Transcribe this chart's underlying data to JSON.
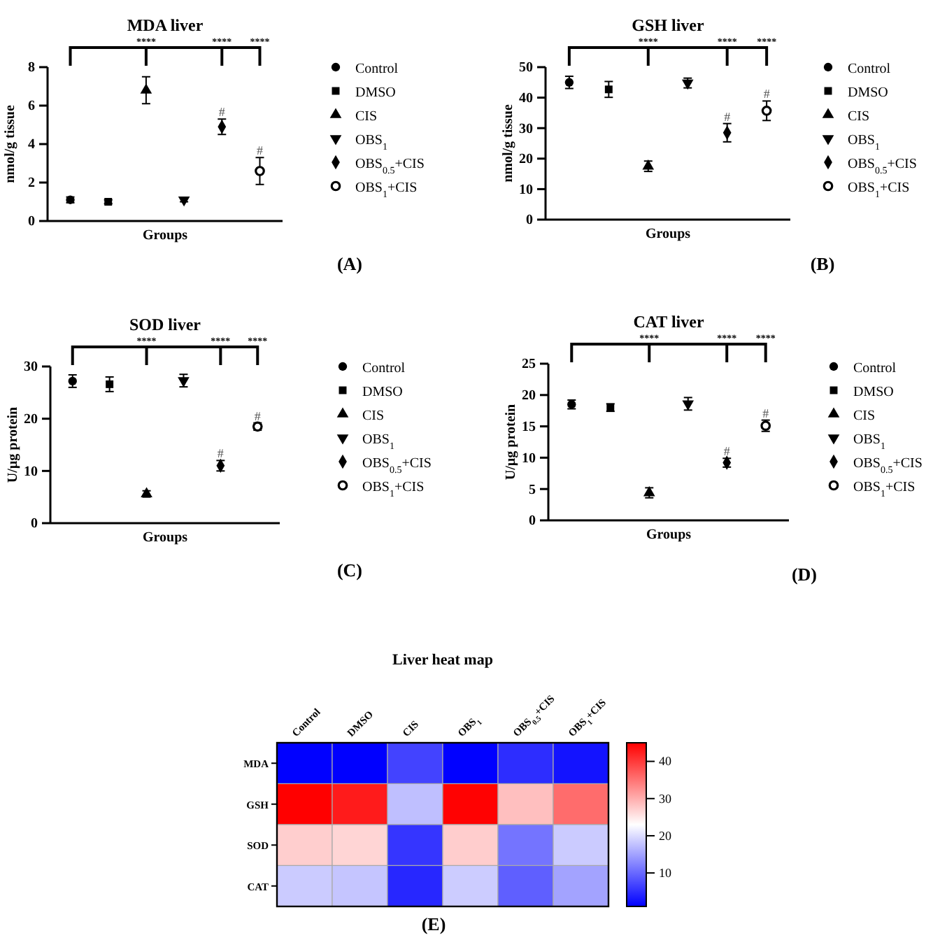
{
  "chart_data": [
    {
      "type": "scatter",
      "title": "MDA liver",
      "xlabel": "Groups",
      "ylabel": "nmol/g tissue",
      "categories": [
        null,
        null,
        null,
        null,
        null,
        null
      ],
      "ylim": [
        0,
        8
      ],
      "yticks": [
        0,
        2,
        4,
        6,
        8
      ],
      "legend": "right",
      "annotations": [
        "****",
        "****",
        "****",
        "#",
        "#",
        "(A)"
      ],
      "series": [
        {
          "name": "Control",
          "color": "#000000",
          "marker": "circle",
          "values": [
            1.1,
            null,
            null,
            null,
            null,
            null
          ],
          "errors": [
            0.15,
            null,
            null,
            null,
            null,
            null
          ]
        },
        {
          "name": "DMSO",
          "color": "#000000",
          "marker": "square",
          "values": [
            null,
            1.0,
            null,
            null,
            null,
            null
          ],
          "errors": [
            null,
            0.1,
            null,
            null,
            null,
            null
          ]
        },
        {
          "name": "CIS",
          "color": "#000000",
          "marker": "triangle",
          "values": [
            null,
            null,
            6.8,
            null,
            null,
            null
          ],
          "errors": [
            null,
            null,
            0.7,
            null,
            null,
            null
          ]
        },
        {
          "name": "OBS$_{1}$",
          "color": "#000000",
          "marker": "triangle-down",
          "values": [
            null,
            null,
            null,
            1.1,
            null,
            null
          ],
          "errors": [
            null,
            null,
            null,
            0.1,
            null,
            null
          ]
        },
        {
          "name": "OBS$_{0.5}$+CIS",
          "color": "#000000",
          "marker": "diamond",
          "values": [
            null,
            null,
            null,
            null,
            4.9,
            null
          ],
          "errors": [
            null,
            null,
            null,
            null,
            0.4,
            null
          ]
        },
        {
          "name": "OBS$_{1}$+CIS",
          "color": "#000000",
          "marker": "circle-open",
          "values": [
            null,
            null,
            null,
            null,
            null,
            2.6
          ],
          "errors": [
            null,
            null,
            null,
            null,
            null,
            0.7
          ]
        }
      ]
    },
    {
      "type": "scatter",
      "title": "GSH liver",
      "xlabel": "Groups",
      "ylabel": "nmol/g tissue",
      "categories": [
        null,
        null,
        null,
        null,
        null,
        null
      ],
      "ylim": [
        0,
        50
      ],
      "yticks": [
        0,
        10,
        20,
        30,
        40,
        50
      ],
      "legend": "right",
      "annotations": [
        "****",
        "****",
        "****",
        "#",
        "#",
        "(B)"
      ],
      "series": [
        {
          "name": "Control",
          "color": "#000000",
          "marker": "circle",
          "values": [
            45,
            null,
            null,
            null,
            null,
            null
          ],
          "errors": [
            2,
            null,
            null,
            null,
            null,
            null
          ]
        },
        {
          "name": "DMSO",
          "color": "#000000",
          "marker": "square",
          "values": [
            null,
            42.7,
            null,
            null,
            null,
            null
          ],
          "errors": [
            null,
            2.6,
            null,
            null,
            null,
            null
          ]
        },
        {
          "name": "CIS",
          "color": "#000000",
          "marker": "triangle",
          "values": [
            null,
            null,
            17.5,
            null,
            null,
            null
          ],
          "errors": [
            null,
            null,
            1.7,
            null,
            null,
            null
          ]
        },
        {
          "name": "OBS$_{1}$",
          "color": "#000000",
          "marker": "triangle-down",
          "values": [
            null,
            null,
            null,
            44.8,
            null,
            null
          ],
          "errors": [
            null,
            null,
            null,
            1.6,
            null,
            null
          ]
        },
        {
          "name": "OBS$_{0.5}$+CIS",
          "color": "#000000",
          "marker": "diamond",
          "values": [
            null,
            null,
            null,
            null,
            28.5,
            null
          ],
          "errors": [
            null,
            null,
            null,
            null,
            3,
            null
          ]
        },
        {
          "name": "OBS$_{1}$+CIS",
          "color": "#000000",
          "marker": "circle-open",
          "values": [
            null,
            null,
            null,
            null,
            null,
            35.7
          ],
          "errors": [
            null,
            null,
            null,
            null,
            null,
            3.2
          ]
        }
      ]
    },
    {
      "type": "scatter",
      "title": "SOD liver",
      "xlabel": "Groups",
      "ylabel": "U/µg protein",
      "categories": [
        null,
        null,
        null,
        null,
        null,
        null
      ],
      "ylim": [
        0,
        30
      ],
      "yticks": [
        0,
        10,
        20,
        30
      ],
      "legend": "right",
      "annotations": [
        "****",
        "****",
        "****",
        "#",
        "#",
        "(C)"
      ],
      "series": [
        {
          "name": "Control",
          "color": "#000000",
          "marker": "circle",
          "values": [
            27.2,
            null,
            null,
            null,
            null,
            null
          ],
          "errors": [
            1.2,
            null,
            null,
            null,
            null,
            null
          ]
        },
        {
          "name": "DMSO",
          "color": "#000000",
          "marker": "square",
          "values": [
            null,
            26.6,
            null,
            null,
            null,
            null
          ],
          "errors": [
            null,
            1.4,
            null,
            null,
            null,
            null
          ]
        },
        {
          "name": "CIS",
          "color": "#000000",
          "marker": "triangle",
          "values": [
            null,
            null,
            5.6,
            null,
            null,
            null
          ],
          "errors": [
            null,
            null,
            0.6,
            null,
            null,
            null
          ]
        },
        {
          "name": "OBS$_{1}$",
          "color": "#000000",
          "marker": "triangle-down",
          "values": [
            null,
            null,
            null,
            27.3,
            null,
            null
          ],
          "errors": [
            null,
            null,
            null,
            1.2,
            null,
            null
          ]
        },
        {
          "name": "OBS$_{0.5}$+CIS",
          "color": "#000000",
          "marker": "diamond",
          "values": [
            null,
            null,
            null,
            null,
            11,
            null
          ],
          "errors": [
            null,
            null,
            null,
            null,
            1,
            null
          ]
        },
        {
          "name": "OBS$_{1}$+CIS",
          "color": "#000000",
          "marker": "circle-open",
          "values": [
            null,
            null,
            null,
            null,
            null,
            18.5
          ],
          "errors": [
            null,
            null,
            null,
            null,
            null,
            0.7
          ]
        }
      ]
    },
    {
      "type": "scatter",
      "title": "CAT liver",
      "xlabel": "Groups",
      "ylabel": "U/µg protein",
      "categories": [
        null,
        null,
        null,
        null,
        null,
        null
      ],
      "ylim": [
        0,
        25
      ],
      "yticks": [
        0,
        5,
        10,
        15,
        20,
        25
      ],
      "legend": "right",
      "annotations": [
        "****",
        "****",
        "****",
        "#",
        "#",
        "(D)"
      ],
      "series": [
        {
          "name": "Control",
          "color": "#000000",
          "marker": "circle",
          "values": [
            18.5,
            null,
            null,
            null,
            null,
            null
          ],
          "errors": [
            0.7,
            null,
            null,
            null,
            null,
            null
          ]
        },
        {
          "name": "DMSO",
          "color": "#000000",
          "marker": "square",
          "values": [
            null,
            18,
            null,
            null,
            null,
            null
          ],
          "errors": [
            null,
            0.6,
            null,
            null,
            null,
            null
          ]
        },
        {
          "name": "CIS",
          "color": "#000000",
          "marker": "triangle",
          "values": [
            null,
            null,
            4.4,
            null,
            null,
            null
          ],
          "errors": [
            null,
            null,
            0.8,
            null,
            null,
            null
          ]
        },
        {
          "name": "OBS$_{1}$",
          "color": "#000000",
          "marker": "triangle-down",
          "values": [
            null,
            null,
            null,
            18.6,
            null,
            null
          ],
          "errors": [
            null,
            null,
            null,
            1,
            null,
            null
          ]
        },
        {
          "name": "OBS$_{0.5}$+CIS",
          "color": "#000000",
          "marker": "diamond",
          "values": [
            null,
            null,
            null,
            null,
            9.2,
            null
          ],
          "errors": [
            null,
            null,
            null,
            null,
            0.7,
            null
          ]
        },
        {
          "name": "OBS$_{1}$+CIS",
          "color": "#000000",
          "marker": "circle-open",
          "values": [
            null,
            null,
            null,
            null,
            null,
            15.1
          ],
          "errors": [
            null,
            null,
            null,
            null,
            null,
            0.9
          ]
        }
      ]
    },
    {
      "type": "heatmap",
      "title": "Liver heat map",
      "categories": [
        "Control",
        "DMSO",
        "CIS",
        "OBS$_{1}$",
        "OBS$_{0.5}$+CIS",
        "OBS$_{1}$+CIS"
      ],
      "y_categories": [
        "MDA",
        "GSH",
        "SOD",
        "CAT"
      ],
      "clim": [
        1,
        45
      ],
      "cticks": [
        10,
        20,
        30,
        40
      ],
      "annotations": [
        "(E)"
      ],
      "cells": [
        [
          1.1,
          1.0,
          6.8,
          1.1,
          4.9,
          2.6
        ],
        [
          45,
          42.7,
          17.5,
          44.8,
          28.5,
          35.7
        ],
        [
          27.2,
          26.6,
          5.6,
          27.3,
          11,
          18.5
        ],
        [
          18.5,
          18,
          4.4,
          18.6,
          9.2,
          15.1
        ]
      ]
    }
  ]
}
